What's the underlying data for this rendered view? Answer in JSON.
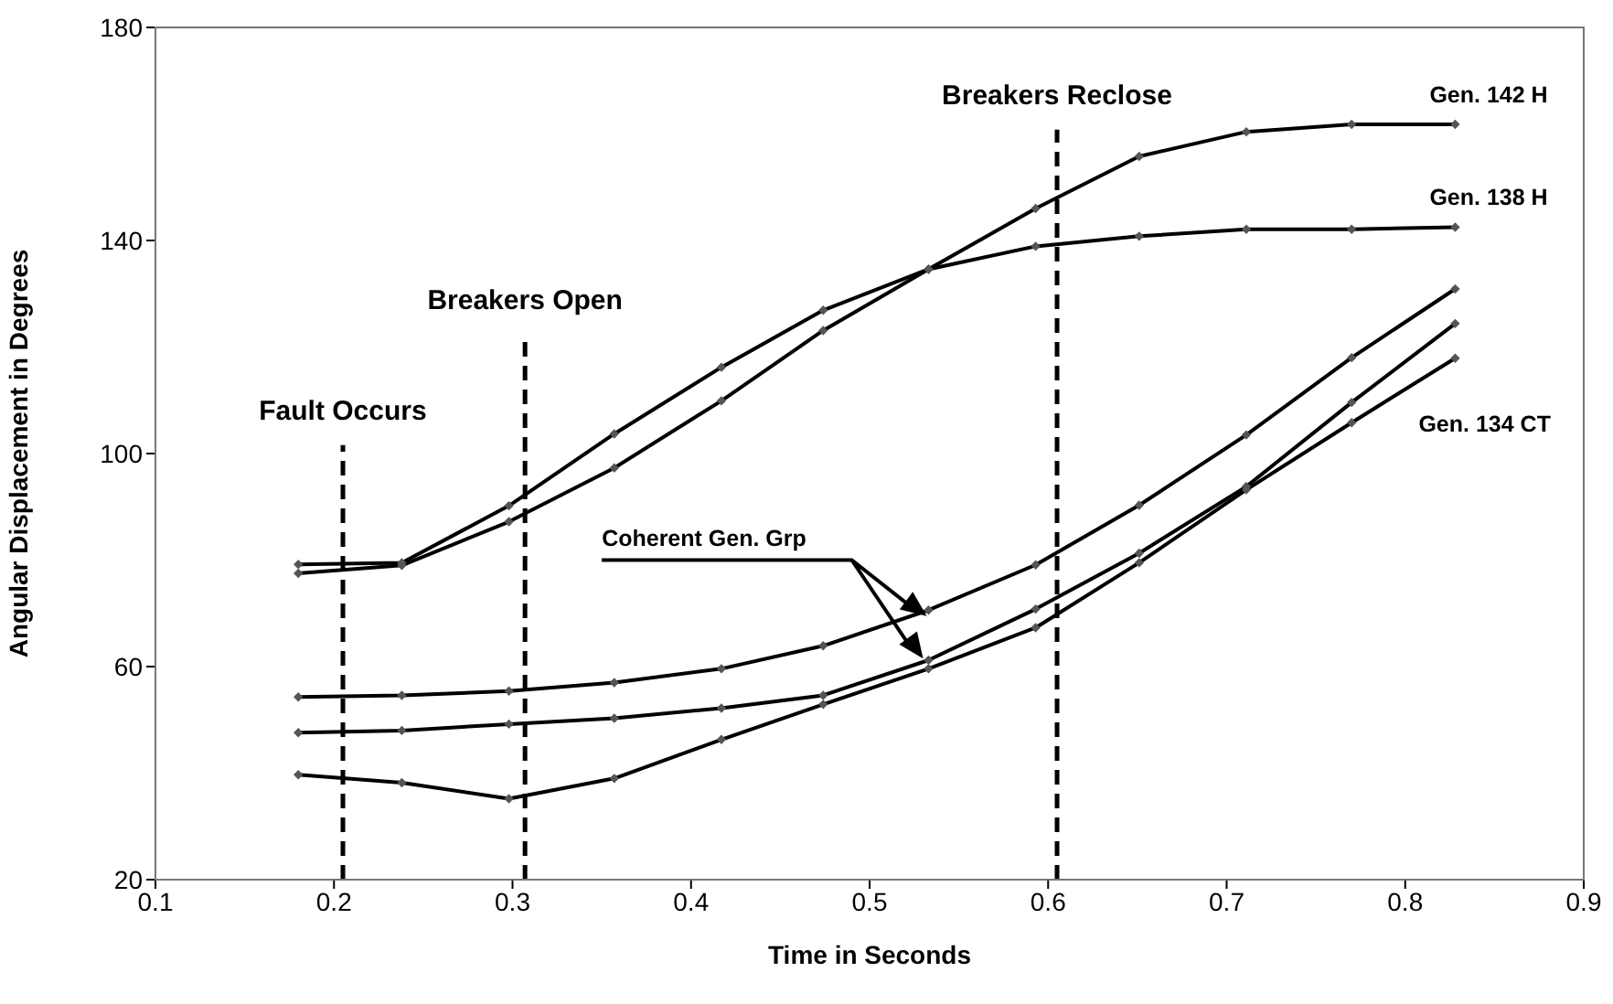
{
  "chart_data": {
    "type": "line",
    "xlabel": "Time in Seconds",
    "ylabel": "Angular Displacement in Degrees",
    "x": [
      0.18,
      0.238,
      0.298,
      0.357,
      0.417,
      0.474,
      0.533,
      0.593,
      0.651,
      0.711,
      0.77,
      0.828
    ],
    "series": [
      {
        "name": "Gen. 142 H",
        "color": "#000000",
        "values": [
          77.5,
          79,
          87.2,
          97.3,
          109.9,
          123.1,
          134.6,
          146,
          155.8,
          160.4,
          161.8,
          161.8
        ]
      },
      {
        "name": "Gen. 138 H",
        "color": "#000000",
        "values": [
          79.2,
          79.5,
          90.2,
          103.7,
          116.2,
          126.9,
          134.6,
          138.9,
          140.8,
          142.1,
          142.1,
          142.5
        ]
      },
      {
        "color": "#000000",
        "values": [
          54.3,
          54.6,
          55.4,
          57,
          59.6,
          63.9,
          70.6,
          79.1,
          90.3,
          103.5,
          118,
          130.9
        ]
      },
      {
        "color": "#000000",
        "values": [
          47.6,
          48,
          49.2,
          50.3,
          52.2,
          54.6,
          61.2,
          70.8,
          81.3,
          93.8,
          109.6,
          124.4
        ]
      },
      {
        "name": "Gen. 134 CT",
        "color": "#000000",
        "values": [
          39.7,
          38.2,
          35.2,
          39,
          46.3,
          52.9,
          59.6,
          67.3,
          79.5,
          93.2,
          105.8,
          117.9
        ]
      }
    ],
    "xlim": [
      0.1,
      0.9
    ],
    "xticks": [
      0.1,
      0.2,
      0.3,
      0.4,
      0.5,
      0.6,
      0.7,
      0.8,
      0.9
    ],
    "ylim": [
      20,
      180
    ],
    "yticks": [
      20,
      60,
      100,
      140,
      180
    ],
    "ref_lines": [
      {
        "axis": "x",
        "value": 0.205,
        "label": "Fault Occurs",
        "color": "#000000",
        "line_style": "dashed"
      },
      {
        "axis": "x",
        "value": 0.307,
        "label": "Breakers Open",
        "color": "#000000",
        "line_style": "dashed"
      },
      {
        "axis": "x",
        "value": 0.605,
        "label": "Breakers Reclose",
        "color": "#000000",
        "line_style": "dashed"
      }
    ],
    "annotations": [
      "Coherent Gen. Grp"
    ],
    "grid": false,
    "legend": false,
    "marker": "diamond",
    "line_style": "solid"
  }
}
